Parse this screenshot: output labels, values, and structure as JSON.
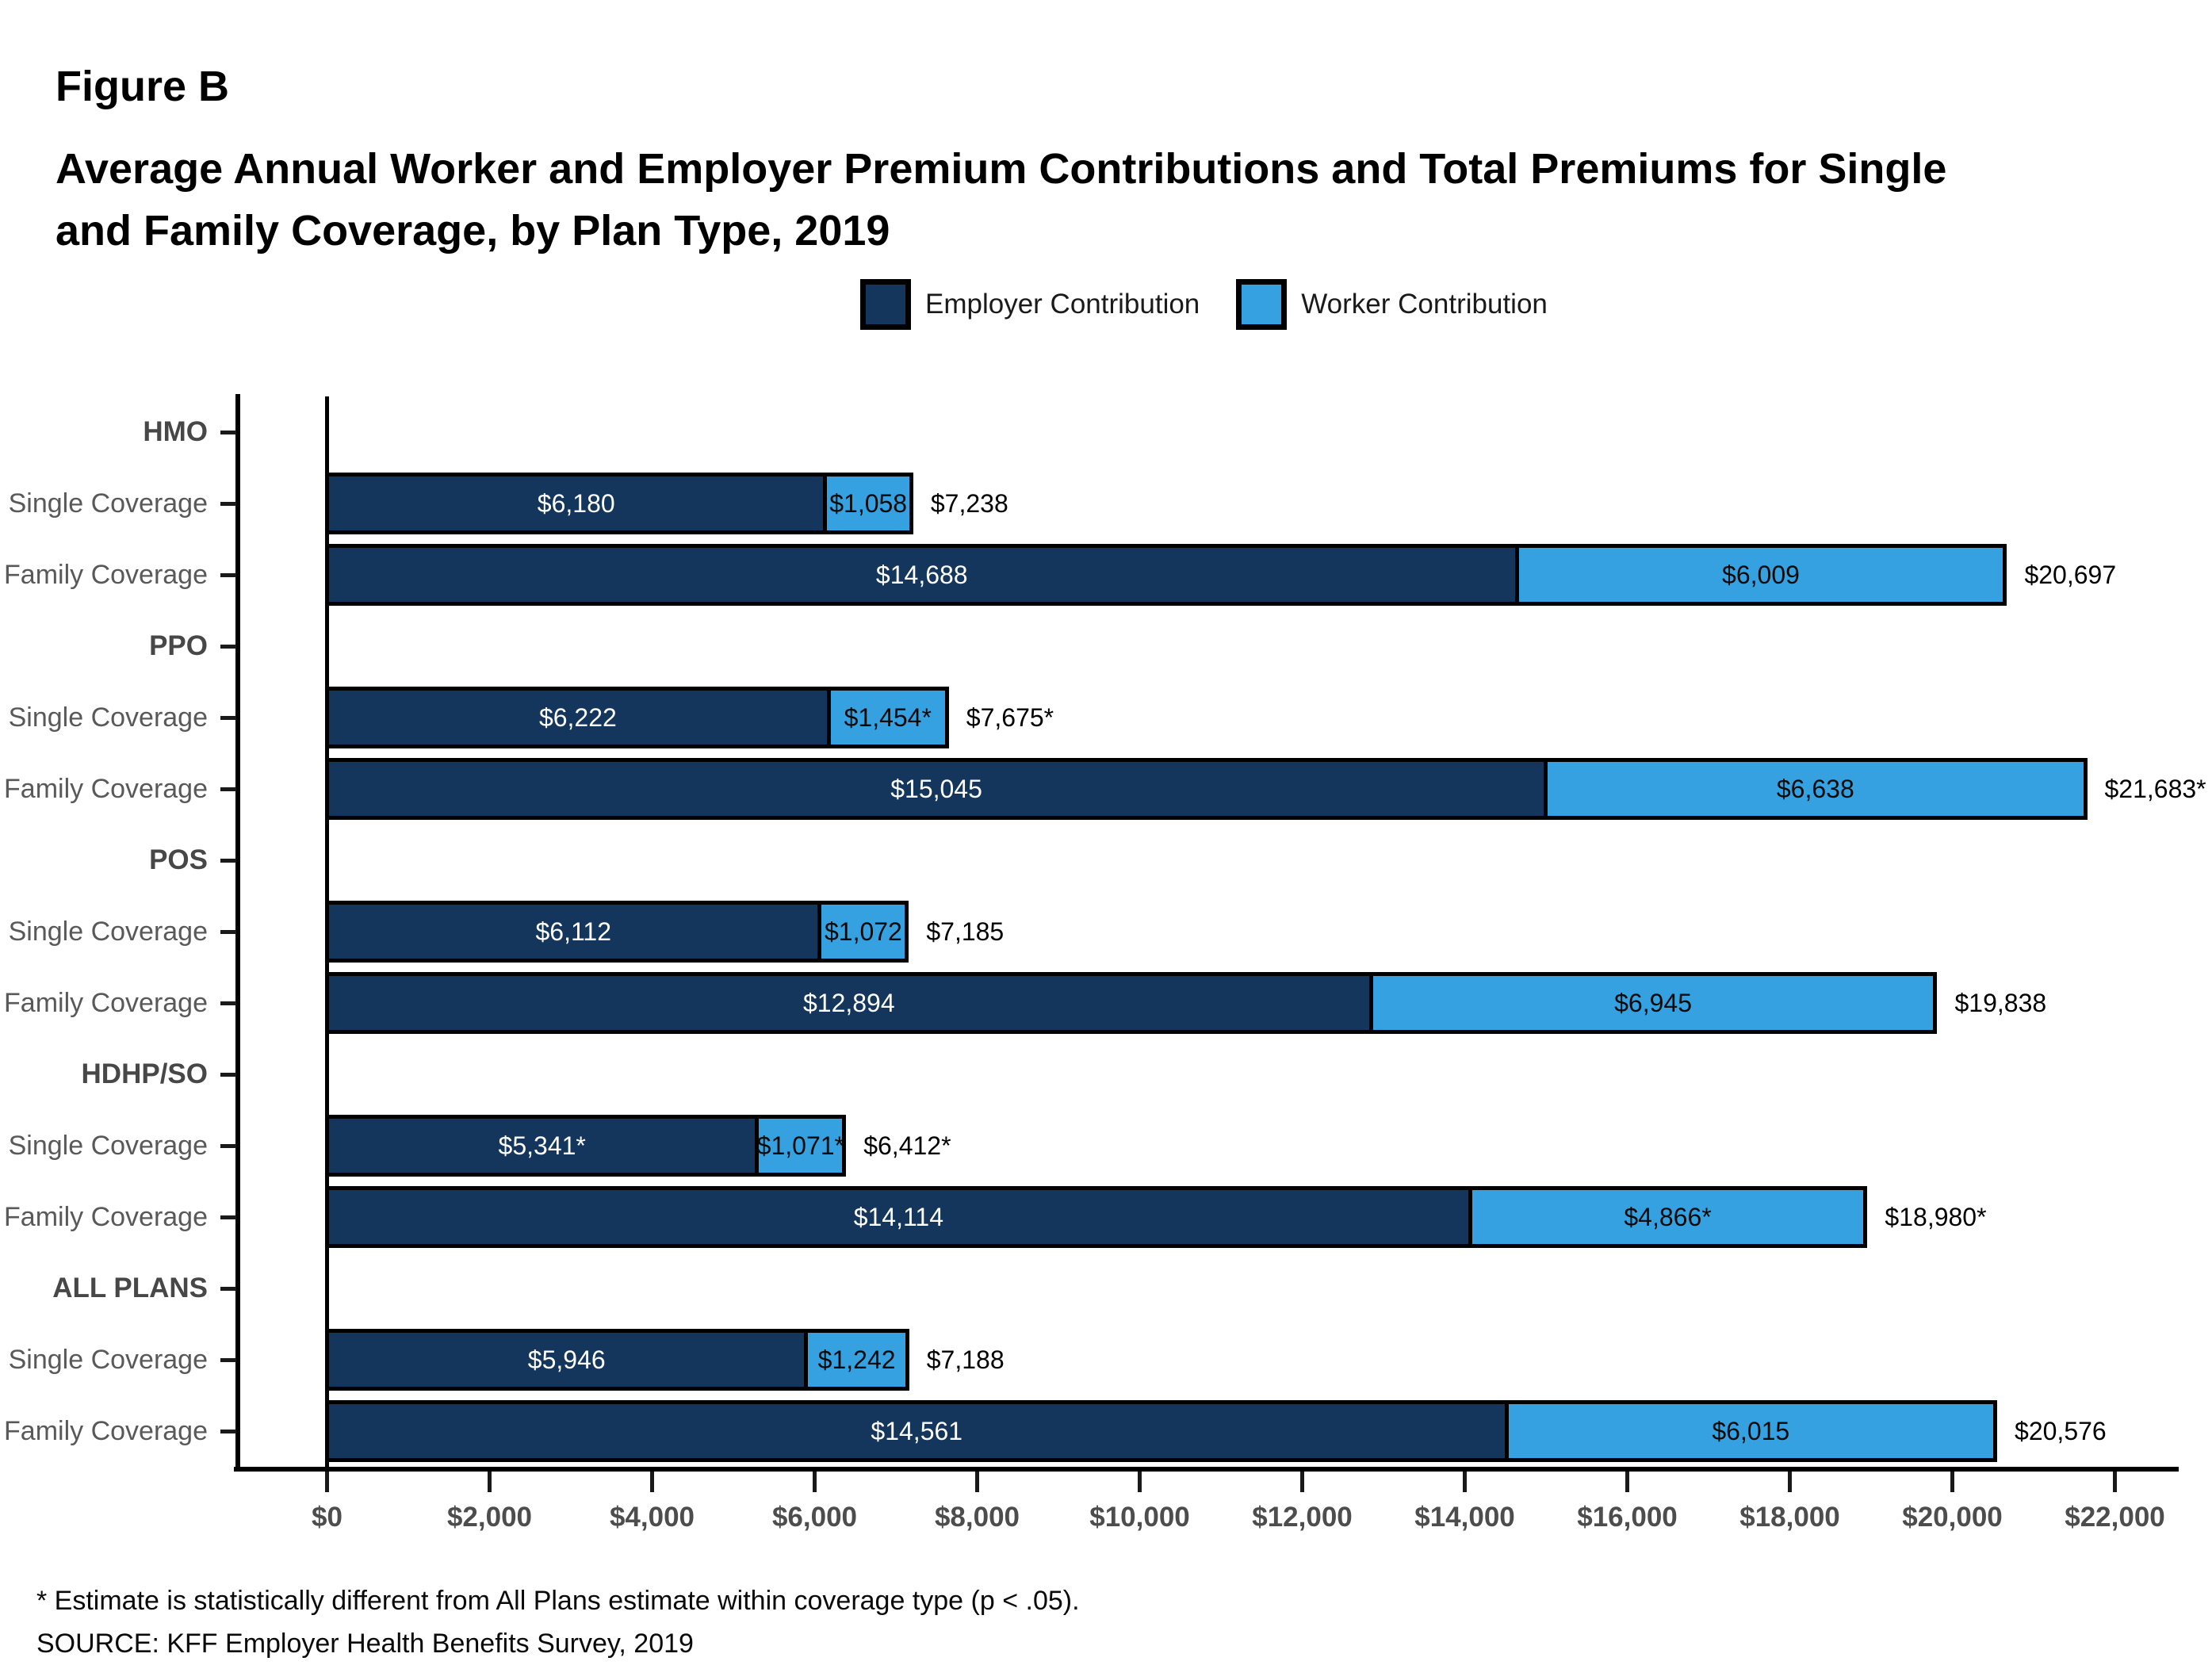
{
  "figure_label": "Figure B",
  "title_lines": [
    "Average Annual Worker and Employer Premium Contributions and Total Premiums for Single",
    "and Family Coverage, by Plan Type, 2019"
  ],
  "legend": [
    {
      "label": "Employer Contribution",
      "color": "#14365C"
    },
    {
      "label": "Worker Contribution",
      "color": "#35A1E0"
    }
  ],
  "chart_data": {
    "type": "bar",
    "orientation": "horizontal",
    "stacked": true,
    "title": "Average Annual Worker and Employer Premium Contributions and Total Premiums for Single and Family Coverage, by Plan Type, 2019",
    "series": [
      "Employer Contribution",
      "Worker Contribution"
    ],
    "x_axis": {
      "min": 0,
      "max": 22000,
      "tick_step": 2000,
      "tick_labels": [
        "$0",
        "$2,000",
        "$4,000",
        "$6,000",
        "$8,000",
        "$10,000",
        "$12,000",
        "$14,000",
        "$16,000",
        "$18,000",
        "$20,000",
        "$22,000"
      ]
    },
    "rows": [
      {
        "label": "HMO",
        "header": true
      },
      {
        "label": "Single Coverage",
        "group": "HMO",
        "employer": 6180,
        "worker": 1058,
        "total": 7238,
        "employer_label": "$6,180",
        "worker_label": "$1,058",
        "total_label": "$7,238"
      },
      {
        "label": "Family Coverage",
        "group": "HMO",
        "employer": 14688,
        "worker": 6009,
        "total": 20697,
        "employer_label": "$14,688",
        "worker_label": "$6,009",
        "total_label": "$20,697"
      },
      {
        "label": "PPO",
        "header": true
      },
      {
        "label": "Single Coverage",
        "group": "PPO",
        "employer": 6222,
        "worker": 1454,
        "total": 7675,
        "employer_label": "$6,222",
        "worker_label": "$1,454*",
        "total_label": "$7,675*"
      },
      {
        "label": "Family Coverage",
        "group": "PPO",
        "employer": 15045,
        "worker": 6638,
        "total": 21683,
        "employer_label": "$15,045",
        "worker_label": "$6,638",
        "total_label": "$21,683*"
      },
      {
        "label": "POS",
        "header": true
      },
      {
        "label": "Single Coverage",
        "group": "POS",
        "employer": 6112,
        "worker": 1072,
        "total": 7185,
        "employer_label": "$6,112",
        "worker_label": "$1,072",
        "total_label": "$7,185"
      },
      {
        "label": "Family Coverage",
        "group": "POS",
        "employer": 12894,
        "worker": 6945,
        "total": 19838,
        "employer_label": "$12,894",
        "worker_label": "$6,945",
        "total_label": "$19,838"
      },
      {
        "label": "HDHP/SO",
        "header": true
      },
      {
        "label": "Single Coverage",
        "group": "HDHP/SO",
        "employer": 5341,
        "worker": 1071,
        "total": 6412,
        "employer_label": "$5,341*",
        "worker_label": "$1,071*",
        "total_label": "$6,412*"
      },
      {
        "label": "Family Coverage",
        "group": "HDHP/SO",
        "employer": 14114,
        "worker": 4866,
        "total": 18980,
        "employer_label": "$14,114",
        "worker_label": "$4,866*",
        "total_label": "$18,980*"
      },
      {
        "label": "ALL PLANS",
        "header": true
      },
      {
        "label": "Single Coverage",
        "group": "ALL PLANS",
        "employer": 5946,
        "worker": 1242,
        "total": 7188,
        "employer_label": "$5,946",
        "worker_label": "$1,242",
        "total_label": "$7,188"
      },
      {
        "label": "Family Coverage",
        "group": "ALL PLANS",
        "employer": 14561,
        "worker": 6015,
        "total": 20576,
        "employer_label": "$14,561",
        "worker_label": "$6,015",
        "total_label": "$20,576"
      }
    ],
    "footnote": "* Estimate is statistically different from All Plans estimate within coverage type (p < .05).",
    "source": "SOURCE: KFF Employer Health Benefits Survey, 2019"
  }
}
